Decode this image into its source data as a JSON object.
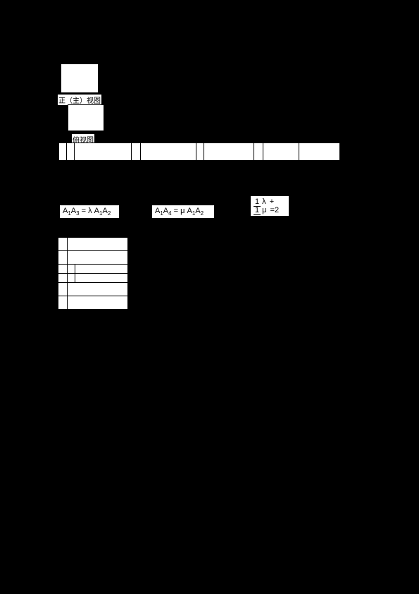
{
  "views": {
    "top_label": "正（主）视图",
    "bottom_label": "俯视图"
  },
  "equations": {
    "eq1": {
      "lhs": "A₁A₃",
      "rhs": "λ·A₁A₂"
    },
    "eq2": {
      "lhs": "A₁A₄",
      "rhs": "μ·A₁A₂"
    },
    "eq3": {
      "frac1_num": "1",
      "frac1_den": "λ",
      "op": "+",
      "frac2_num": "1",
      "frac2_den": "μ",
      "eq": "=",
      "rhs": "2"
    }
  },
  "colors": {
    "page_bg": "#000000",
    "box_bg": "#ffffff",
    "border": "#000000"
  }
}
